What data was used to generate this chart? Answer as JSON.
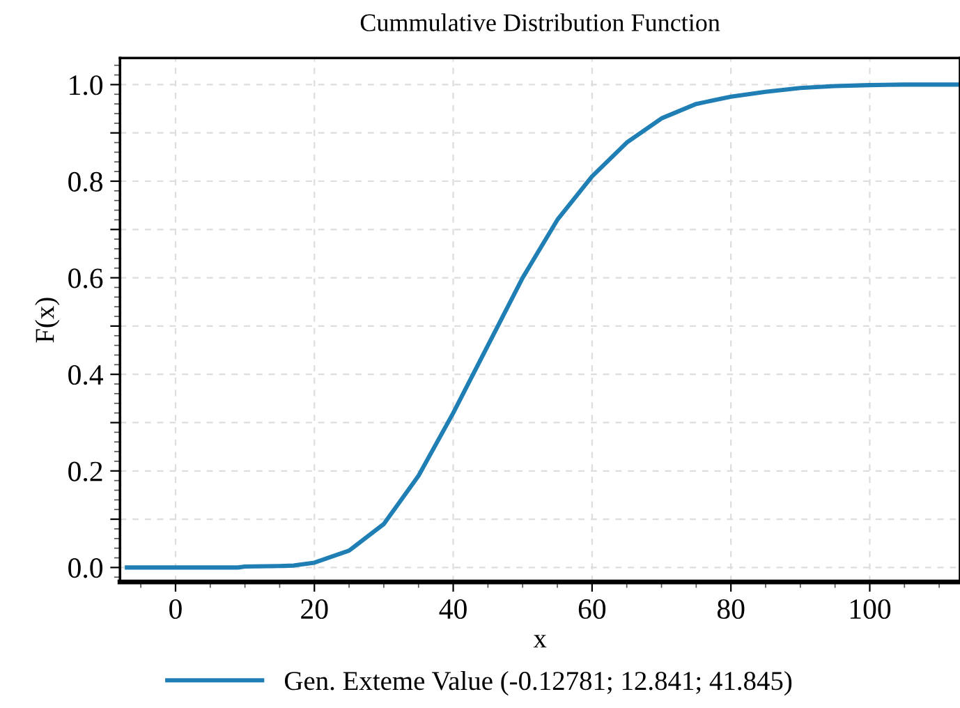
{
  "chart_data": {
    "type": "line",
    "title": "Cummulative Distribution Function",
    "xlabel": "x",
    "ylabel": "F(x)",
    "series": [
      {
        "name": "Gen. Exteme Value (-0.12781; 12.841; 41.845)",
        "color": "#1f7fb4",
        "x": [
          -7,
          0,
          9,
          10,
          15,
          17,
          20,
          25,
          30,
          35,
          40,
          45,
          50,
          55,
          60,
          65,
          70,
          75,
          80,
          85,
          90,
          95,
          100,
          105,
          113
        ],
        "values": [
          0.0,
          0.0,
          0.0,
          0.002,
          0.003,
          0.004,
          0.01,
          0.035,
          0.09,
          0.19,
          0.32,
          0.46,
          0.6,
          0.72,
          0.81,
          0.88,
          0.93,
          0.96,
          0.975,
          0.985,
          0.993,
          0.997,
          0.999,
          1.0,
          1.0
        ]
      }
    ],
    "xlim": [
      -8,
      113
    ],
    "xticks": [
      0,
      20,
      40,
      60,
      80,
      100
    ],
    "ylim": [
      -0.03,
      1.055
    ],
    "yticks": [
      {
        "value": 0.0,
        "label": "0.0"
      },
      {
        "value": 0.1,
        "label": null
      },
      0.2,
      {
        "value": 0.3,
        "label": null
      },
      0.4,
      {
        "value": 0.5,
        "label": null
      },
      0.6,
      {
        "value": 0.7,
        "label": null
      },
      0.8,
      {
        "value": 0.9,
        "label": null
      },
      {
        "value": 1.0,
        "label": "1.0"
      }
    ],
    "grid": true,
    "legend": "bottom",
    "marker": "none",
    "line_style": "solid"
  }
}
